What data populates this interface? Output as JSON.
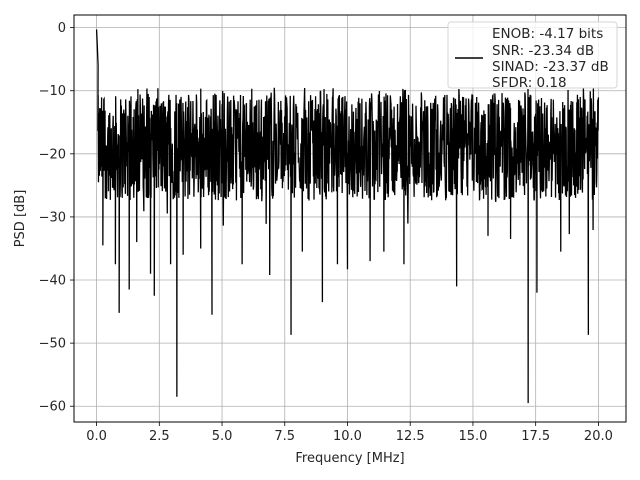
{
  "chart_data": {
    "type": "line",
    "title": "",
    "xlabel": "Frequency [MHz]",
    "ylabel": "PSD [dB]",
    "xlim": [
      -0.9,
      21.1
    ],
    "ylim": [
      -62.5,
      2.0
    ],
    "xticks": [
      0.0,
      2.5,
      5.0,
      7.5,
      10.0,
      12.5,
      15.0,
      17.5,
      20.0
    ],
    "xtick_labels": [
      "0.0",
      "2.5",
      "5.0",
      "7.5",
      "10.0",
      "12.5",
      "15.0",
      "17.5",
      "20.0"
    ],
    "yticks": [
      0,
      -10,
      -20,
      -30,
      -40,
      -50,
      -60
    ],
    "ytick_labels": [
      "0",
      "−10",
      "−20",
      "−30",
      "−40",
      "−50",
      "−60"
    ],
    "grid": true,
    "legend_position": "top-right",
    "legend_entries": [
      "ENOB: -4.17 bits",
      "SNR: -23.34 dB",
      "SINAD: -23.37 dB",
      "SFDR: 0.18"
    ],
    "series": [
      {
        "color": "#000000",
        "noise_band": {
          "x_start": 0.05,
          "x_end": 20.0,
          "typical_top_db": -11,
          "typical_bottom_db": -27
        },
        "peaks": [
          {
            "x": 0.0,
            "y": -0.3
          },
          {
            "x": 0.03,
            "y": -3.0
          },
          {
            "x": 0.06,
            "y": -6.0
          }
        ],
        "dips": [
          {
            "x": 0.25,
            "y": -34.5
          },
          {
            "x": 0.75,
            "y": -37.5
          },
          {
            "x": 0.9,
            "y": -45.2
          },
          {
            "x": 1.3,
            "y": -41.5
          },
          {
            "x": 1.6,
            "y": -34.0
          },
          {
            "x": 2.15,
            "y": -39.0
          },
          {
            "x": 2.3,
            "y": -42.5
          },
          {
            "x": 2.95,
            "y": -37.5
          },
          {
            "x": 3.2,
            "y": -58.5
          },
          {
            "x": 3.45,
            "y": -36.0
          },
          {
            "x": 4.15,
            "y": -35.0
          },
          {
            "x": 4.6,
            "y": -45.5
          },
          {
            "x": 5.8,
            "y": -37.5
          },
          {
            "x": 6.9,
            "y": -39.2
          },
          {
            "x": 7.75,
            "y": -48.7
          },
          {
            "x": 8.2,
            "y": -35.5
          },
          {
            "x": 9.0,
            "y": -43.5
          },
          {
            "x": 9.6,
            "y": -37.5
          },
          {
            "x": 10.0,
            "y": -38.3
          },
          {
            "x": 10.9,
            "y": -37.0
          },
          {
            "x": 11.45,
            "y": -35.5
          },
          {
            "x": 12.25,
            "y": -37.5
          },
          {
            "x": 14.35,
            "y": -41.0
          },
          {
            "x": 15.6,
            "y": -33.0
          },
          {
            "x": 16.5,
            "y": -33.5
          },
          {
            "x": 17.2,
            "y": -59.5
          },
          {
            "x": 17.55,
            "y": -42.0
          },
          {
            "x": 18.5,
            "y": -35.5
          },
          {
            "x": 19.6,
            "y": -48.7
          }
        ]
      }
    ]
  }
}
